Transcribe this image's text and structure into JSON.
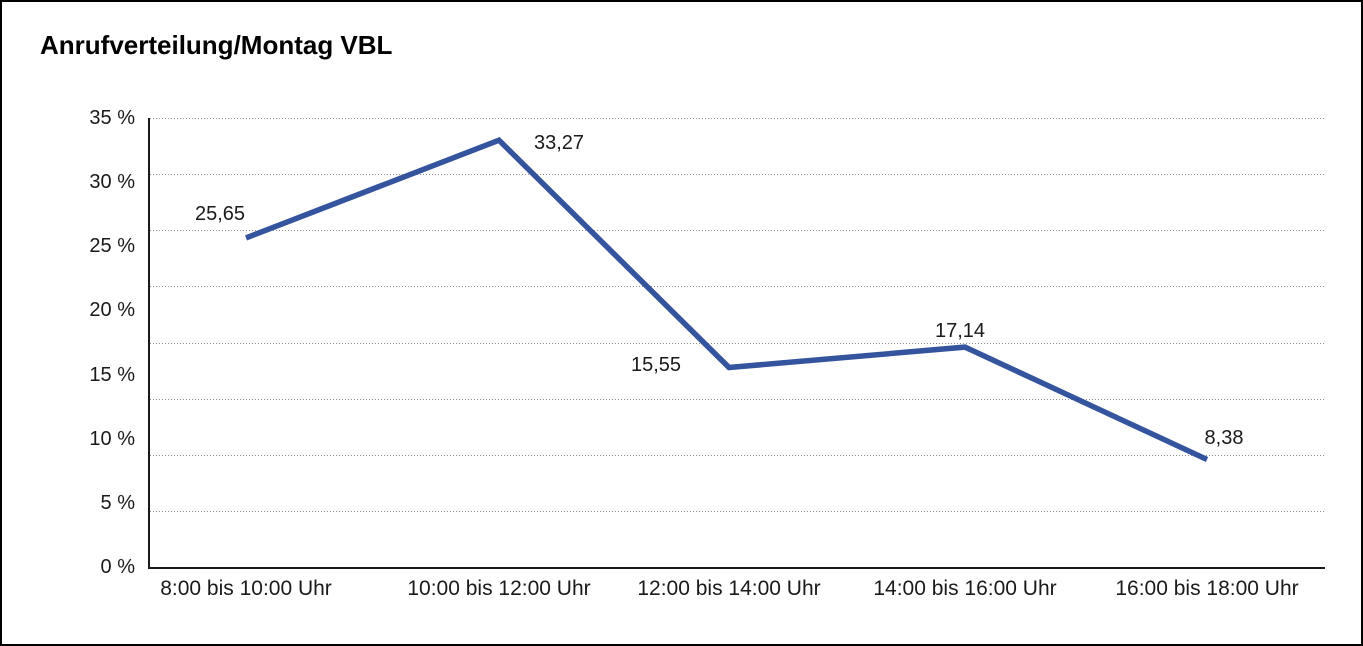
{
  "chart_data": {
    "type": "line",
    "title": "Anrufverteilung/Montag VBL",
    "categories": [
      "8:00 bis 10:00 Uhr",
      "10:00 bis 12:00 Uhr",
      "12:00 bis 14:00 Uhr",
      "14:00 bis 16:00 Uhr",
      "16:00 bis 18:00 Uhr"
    ],
    "values": [
      25.65,
      33.27,
      15.55,
      17.14,
      8.38
    ],
    "value_labels": [
      "25,65",
      "33,27",
      "15,55",
      "17,14",
      "8,38"
    ],
    "y_ticks": [
      "35 %",
      "30 %",
      "25 %",
      "20 %",
      "15 %",
      "10 %",
      "5 %",
      "0 %"
    ],
    "ylim": [
      0,
      35
    ],
    "xlabel": "",
    "ylabel": "",
    "grid": "horizontal-dotted",
    "legend": "none",
    "line_color": "#35549e",
    "axis_color": "#1a1a1a",
    "gridline_color": "#8c8c8c",
    "text_color": "#1a1a1a",
    "background_color": "#ffffff"
  }
}
